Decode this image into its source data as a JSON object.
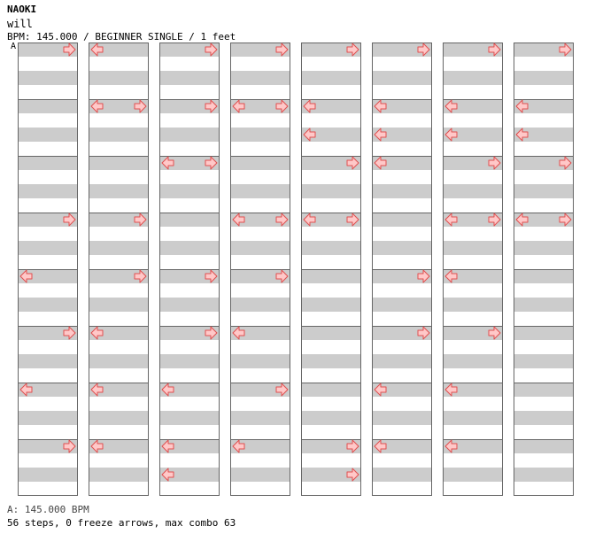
{
  "header": {
    "artist": "NAOKI",
    "song_title": "will",
    "chart_info": "BPM: 145.000 / BEGINNER SINGLE / 1 feet",
    "bpm_marker": "A"
  },
  "footer": {
    "bpm_line": "A: 145.000 BPM",
    "stats": "56 steps, 0 freeze arrows, max combo 63"
  },
  "chart_data": {
    "type": "step-chart",
    "arrow_directions": [
      "left",
      "right"
    ],
    "columns": [
      {
        "measures": [
          {
            "notes": [
              [
                0,
                "right"
              ]
            ]
          },
          {
            "notes": []
          },
          {
            "notes": []
          },
          {
            "notes": [
              [
                0,
                "right"
              ]
            ]
          },
          {
            "notes": [
              [
                0,
                "left"
              ]
            ]
          },
          {
            "notes": [
              [
                0,
                "right"
              ]
            ]
          },
          {
            "notes": [
              [
                0,
                "left"
              ]
            ]
          },
          {
            "notes": [
              [
                0,
                "right"
              ]
            ]
          }
        ]
      },
      {
        "measures": [
          {
            "notes": [
              [
                0,
                "left"
              ]
            ]
          },
          {
            "notes": [
              [
                0,
                "left"
              ],
              [
                0,
                "right"
              ]
            ]
          },
          {
            "notes": []
          },
          {
            "notes": [
              [
                0,
                "right"
              ]
            ]
          },
          {
            "notes": [
              [
                0,
                "right"
              ]
            ]
          },
          {
            "notes": [
              [
                0,
                "left"
              ]
            ]
          },
          {
            "notes": [
              [
                0,
                "left"
              ]
            ]
          },
          {
            "notes": [
              [
                0,
                "left"
              ]
            ]
          }
        ]
      },
      {
        "measures": [
          {
            "notes": [
              [
                0,
                "right"
              ]
            ]
          },
          {
            "notes": [
              [
                0,
                "right"
              ]
            ]
          },
          {
            "notes": [
              [
                0,
                "left"
              ],
              [
                0,
                "right"
              ]
            ]
          },
          {
            "notes": []
          },
          {
            "notes": [
              [
                0,
                "right"
              ]
            ]
          },
          {
            "notes": [
              [
                0,
                "right"
              ]
            ]
          },
          {
            "notes": [
              [
                0,
                "left"
              ]
            ]
          },
          {
            "notes": [
              [
                0,
                "left"
              ],
              [
                2,
                "left"
              ]
            ]
          }
        ]
      },
      {
        "measures": [
          {
            "notes": [
              [
                0,
                "right"
              ]
            ]
          },
          {
            "notes": [
              [
                0,
                "left"
              ],
              [
                0,
                "right"
              ]
            ]
          },
          {
            "notes": []
          },
          {
            "notes": [
              [
                0,
                "left"
              ],
              [
                0,
                "right"
              ]
            ]
          },
          {
            "notes": [
              [
                0,
                "right"
              ]
            ]
          },
          {
            "notes": [
              [
                0,
                "left"
              ]
            ]
          },
          {
            "notes": [
              [
                0,
                "right"
              ]
            ]
          },
          {
            "notes": [
              [
                0,
                "left"
              ]
            ]
          }
        ]
      },
      {
        "measures": [
          {
            "notes": [
              [
                0,
                "right"
              ]
            ]
          },
          {
            "notes": [
              [
                0,
                "left"
              ],
              [
                2,
                "left"
              ]
            ]
          },
          {
            "notes": [
              [
                0,
                "right"
              ]
            ]
          },
          {
            "notes": [
              [
                0,
                "left"
              ],
              [
                0,
                "right"
              ]
            ]
          },
          {
            "notes": []
          },
          {
            "notes": []
          },
          {
            "notes": []
          },
          {
            "notes": [
              [
                0,
                "right"
              ],
              [
                2,
                "right"
              ]
            ]
          }
        ]
      },
      {
        "measures": [
          {
            "notes": [
              [
                0,
                "right"
              ]
            ]
          },
          {
            "notes": [
              [
                0,
                "left"
              ],
              [
                2,
                "left"
              ]
            ]
          },
          {
            "notes": [
              [
                0,
                "left"
              ]
            ]
          },
          {
            "notes": []
          },
          {
            "notes": [
              [
                0,
                "right"
              ]
            ]
          },
          {
            "notes": [
              [
                0,
                "right"
              ]
            ]
          },
          {
            "notes": [
              [
                0,
                "left"
              ]
            ]
          },
          {
            "notes": [
              [
                0,
                "left"
              ]
            ]
          }
        ]
      },
      {
        "measures": [
          {
            "notes": [
              [
                0,
                "right"
              ]
            ]
          },
          {
            "notes": [
              [
                0,
                "left"
              ],
              [
                2,
                "left"
              ]
            ]
          },
          {
            "notes": [
              [
                0,
                "right"
              ]
            ]
          },
          {
            "notes": [
              [
                0,
                "left"
              ],
              [
                0,
                "right"
              ]
            ]
          },
          {
            "notes": [
              [
                0,
                "left"
              ]
            ]
          },
          {
            "notes": [
              [
                0,
                "right"
              ]
            ]
          },
          {
            "notes": [
              [
                0,
                "left"
              ]
            ]
          },
          {
            "notes": [
              [
                0,
                "left"
              ]
            ]
          }
        ]
      },
      {
        "measures": [
          {
            "notes": [
              [
                0,
                "right"
              ]
            ]
          },
          {
            "notes": [
              [
                0,
                "left"
              ],
              [
                2,
                "left"
              ]
            ]
          },
          {
            "notes": [
              [
                0,
                "right"
              ]
            ]
          },
          {
            "notes": [
              [
                0,
                "left"
              ],
              [
                0,
                "right"
              ]
            ]
          },
          {
            "notes": []
          },
          {
            "notes": []
          },
          {
            "notes": []
          },
          {
            "notes": []
          }
        ]
      }
    ]
  }
}
